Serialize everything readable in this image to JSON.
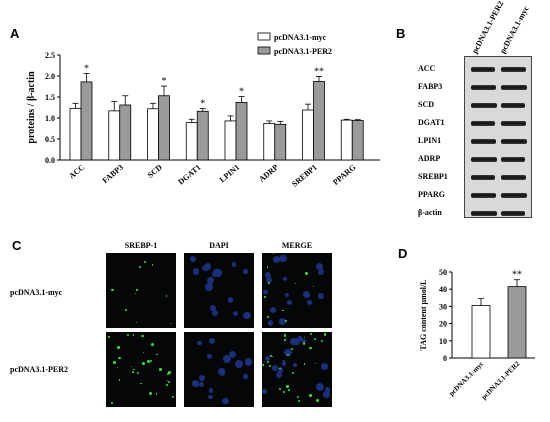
{
  "panels": {
    "a": "A",
    "b": "B",
    "c": "C",
    "d": "D"
  },
  "chart_data": [
    {
      "type": "bar",
      "ylabel": "proteins / β-actin",
      "ylim": [
        0,
        2.5
      ],
      "yticks": [
        "0.0",
        "0.5",
        "1.0",
        "1.5",
        "2.0",
        "2.5"
      ],
      "categories": [
        "ACC",
        "FABP3",
        "SCD",
        "DGAT1",
        "LPIN1",
        "ADRP",
        "SREBP1",
        "PPARG"
      ],
      "series": [
        {
          "name": "pcDNA3.1-myc",
          "values": [
            1.23,
            1.17,
            1.22,
            0.89,
            0.93,
            0.87,
            1.19,
            0.95
          ],
          "errors": [
            0.12,
            0.22,
            0.13,
            0.08,
            0.12,
            0.06,
            0.14,
            0.02
          ],
          "color": "#ffffff"
        },
        {
          "name": "pcDNA3.1-PER2",
          "values": [
            1.86,
            1.31,
            1.53,
            1.16,
            1.37,
            0.85,
            1.87,
            0.94
          ],
          "errors": [
            0.2,
            0.22,
            0.23,
            0.07,
            0.14,
            0.07,
            0.12,
            0.02
          ],
          "color": "#9a9a9a"
        }
      ],
      "significance": [
        "*",
        "",
        "*",
        "*",
        "*",
        "",
        "**",
        ""
      ]
    },
    {
      "type": "bar",
      "ylabel": "TAG content  μmol/L",
      "ylim": [
        0,
        50
      ],
      "yticks": [
        "0",
        "10",
        "20",
        "30",
        "40",
        "50"
      ],
      "categories": [
        "pcDNA3.1-myc",
        "pcDNA3.1-PER2"
      ],
      "values": [
        30.5,
        41.5
      ],
      "errors": [
        4,
        4
      ],
      "colors": [
        "#ffffff",
        "#9a9a9a"
      ],
      "significance": [
        "",
        "**"
      ]
    }
  ],
  "blot": {
    "lanes": [
      "pcDNA3.1-PER2",
      "pcDNA3.1-myc"
    ],
    "proteins": [
      "ACC",
      "FABP3",
      "SCD",
      "DGAT1",
      "LPIN1",
      "ADRP",
      "SREBP1",
      "PPARG",
      "β-actin"
    ]
  },
  "micrographs": {
    "columns": [
      "SREBP-1",
      "DAPI",
      "MERGE"
    ],
    "rows": [
      "pcDNA3.1-myc",
      "pcDNA3.1-PER2"
    ]
  }
}
